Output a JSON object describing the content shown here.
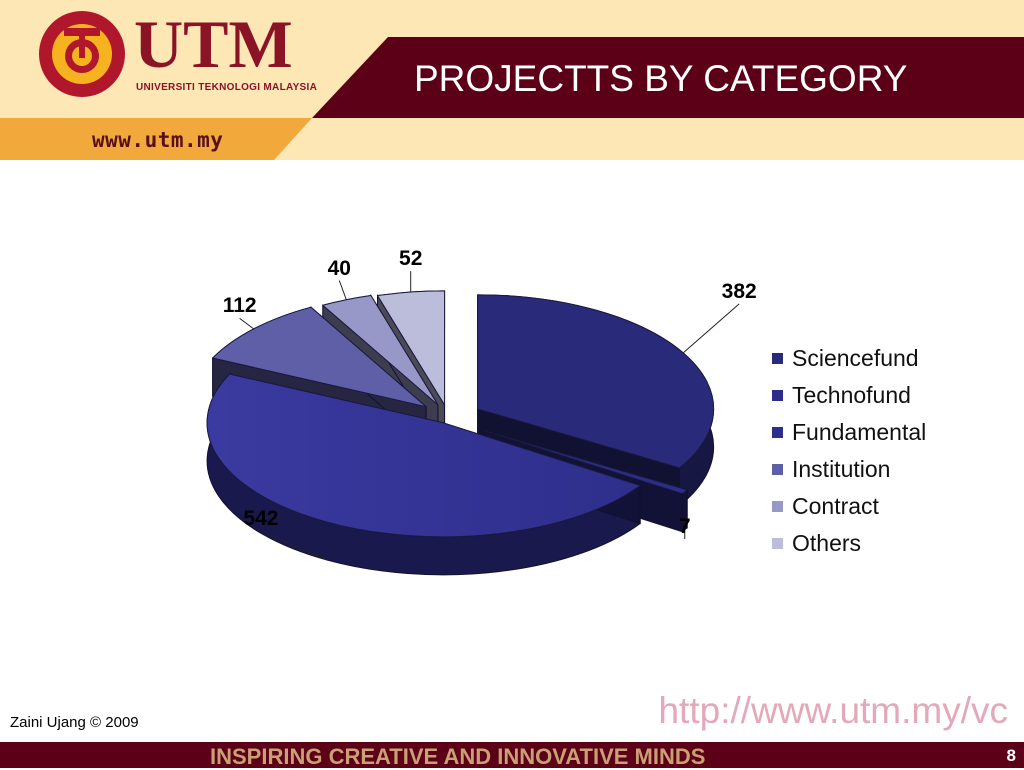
{
  "header": {
    "logo_text": "UTM",
    "logo_subtitle": "UNIVERSITI TEKNOLOGI MALAYSIA",
    "site_url": "www.utm.my",
    "slide_title": "PROJECTTS BY CATEGORY"
  },
  "colors": {
    "maroon": "#5c0018",
    "gold": "#f2a93b",
    "cream": "#fde7b5"
  },
  "chart_data": {
    "type": "pie",
    "style": "3d-exploded",
    "categories": [
      "Sciencefund",
      "Technofund",
      "Fundamental",
      "Institution",
      "Contract",
      "Others"
    ],
    "values": [
      382,
      7,
      542,
      112,
      40,
      52
    ],
    "data_labels": [
      "382",
      "7",
      "542",
      "112",
      "40",
      "52"
    ],
    "colors": [
      "#2a2a7a",
      "#2c2c8a",
      "#2e2e8c",
      "#5f5fa8",
      "#9898c8",
      "#bcbcdb"
    ],
    "legend": {
      "position": "right",
      "entries": [
        "Sciencefund",
        "Technofund",
        "Fundamental",
        "Institution",
        "Contract",
        "Others"
      ]
    }
  },
  "footer": {
    "url": "http://www.utm.my/vc",
    "author": "Zaini Ujang © 2009",
    "tagline": "INSPIRING CREATIVE AND INNOVATIVE MINDS",
    "page_number": "8"
  }
}
